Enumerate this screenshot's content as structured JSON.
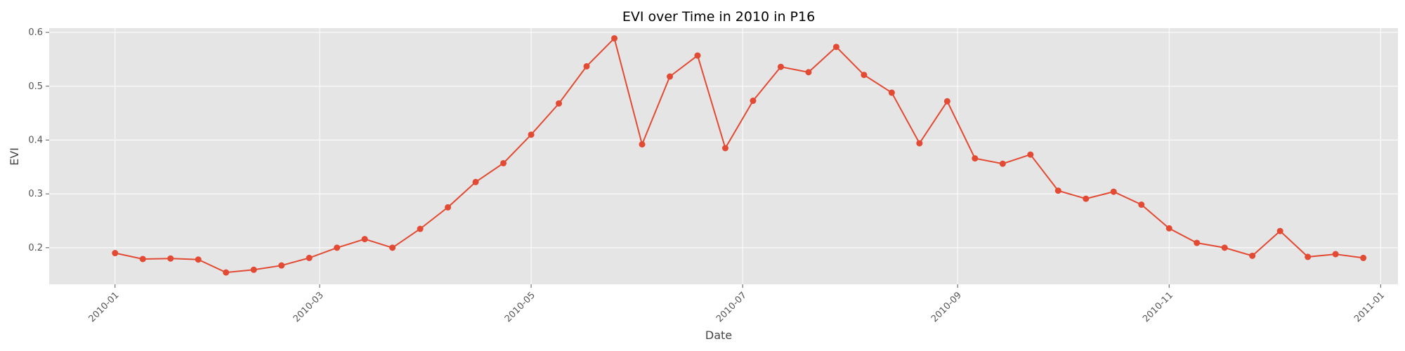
{
  "chart_data": {
    "type": "line",
    "title": "EVI over Time in 2010 in P16",
    "xlabel": "Date",
    "ylabel": "EVI",
    "xlim": [
      "2009-12-13",
      "2011-01-06"
    ],
    "ylim": [
      0.132,
      0.608
    ],
    "grid": true,
    "x_ticks": [
      "2010-01",
      "2010-03",
      "2010-05",
      "2010-07",
      "2010-09",
      "2010-11",
      "2011-01"
    ],
    "x_tick_dates": [
      "2010-01-01",
      "2010-03-01",
      "2010-05-01",
      "2010-07-01",
      "2010-09-01",
      "2010-11-01",
      "2011-01-01"
    ],
    "y_ticks": [
      0.2,
      0.3,
      0.4,
      0.5,
      0.6
    ],
    "y_tick_labels": [
      "0.2",
      "0.3",
      "0.4",
      "0.5",
      "0.6"
    ],
    "colors": {
      "line": "#E24A33",
      "plot_bg": "#E5E5E5",
      "grid": "#FFFFFF"
    },
    "series": [
      {
        "x": [
          "2010-01-01",
          "2010-01-09",
          "2010-01-17",
          "2010-01-25",
          "2010-02-02",
          "2010-02-10",
          "2010-02-18",
          "2010-02-26",
          "2010-03-06",
          "2010-03-14",
          "2010-03-22",
          "2010-03-30",
          "2010-04-07",
          "2010-04-15",
          "2010-04-23",
          "2010-05-01",
          "2010-05-09",
          "2010-05-17",
          "2010-05-25",
          "2010-06-02",
          "2010-06-10",
          "2010-06-18",
          "2010-06-26",
          "2010-07-04",
          "2010-07-12",
          "2010-07-20",
          "2010-07-28",
          "2010-08-05",
          "2010-08-13",
          "2010-08-21",
          "2010-08-29",
          "2010-09-06",
          "2010-09-14",
          "2010-09-22",
          "2010-09-30",
          "2010-10-08",
          "2010-10-16",
          "2010-10-24",
          "2010-11-01",
          "2010-11-09",
          "2010-11-17",
          "2010-11-25",
          "2010-12-03",
          "2010-12-11",
          "2010-12-19",
          "2010-12-27"
        ],
        "values": [
          0.19,
          0.179,
          0.18,
          0.178,
          0.154,
          0.159,
          0.167,
          0.181,
          0.2,
          0.216,
          0.2,
          0.235,
          0.275,
          0.322,
          0.357,
          0.41,
          0.468,
          0.537,
          0.589,
          0.392,
          0.518,
          0.557,
          0.385,
          0.473,
          0.536,
          0.526,
          0.573,
          0.521,
          0.488,
          0.394,
          0.472,
          0.366,
          0.356,
          0.373,
          0.306,
          0.291,
          0.304,
          0.28,
          0.236,
          0.209,
          0.2,
          0.185,
          0.231,
          0.183,
          0.188,
          0.181
        ]
      }
    ]
  }
}
